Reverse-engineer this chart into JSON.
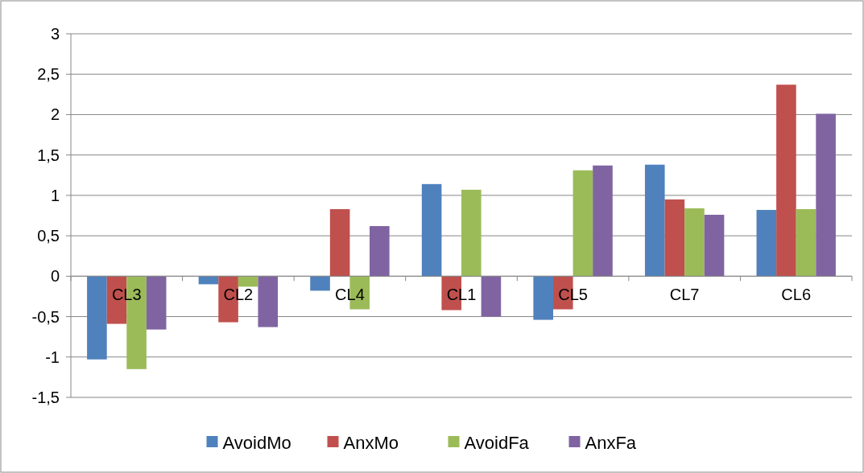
{
  "chart_data": {
    "type": "bar",
    "categories": [
      "CL3",
      "CL2",
      "CL4",
      "CL1",
      "CL5",
      "CL7",
      "CL6"
    ],
    "series": [
      {
        "name": "AvoidMo",
        "color": "#4f81bd",
        "values": [
          -1.03,
          -0.1,
          -0.18,
          1.14,
          -0.54,
          1.38,
          0.82
        ]
      },
      {
        "name": "AnxMo",
        "color": "#c0504d",
        "values": [
          -0.59,
          -0.57,
          0.83,
          -0.42,
          -0.41,
          0.95,
          2.37
        ]
      },
      {
        "name": "AvoidFa",
        "color": "#9bbb59",
        "values": [
          -1.15,
          -0.13,
          -0.41,
          1.07,
          1.31,
          0.84,
          0.83
        ]
      },
      {
        "name": "AnxFa",
        "color": "#8064a2",
        "values": [
          -0.66,
          -0.63,
          0.62,
          -0.5,
          1.37,
          0.76,
          2.01
        ]
      }
    ],
    "ylim": [
      -1.5,
      3
    ],
    "yticks": [
      {
        "value": -1.5,
        "label": "-1,5"
      },
      -1,
      {
        "value": -0.5,
        "label": "-0,5"
      },
      0,
      {
        "value": 0.5,
        "label": "0,5"
      },
      1,
      {
        "value": 1.5,
        "label": "1,5"
      },
      2,
      {
        "value": 2.5,
        "label": "2,5"
      },
      3
    ],
    "grid": "y",
    "legend": "bottom"
  }
}
